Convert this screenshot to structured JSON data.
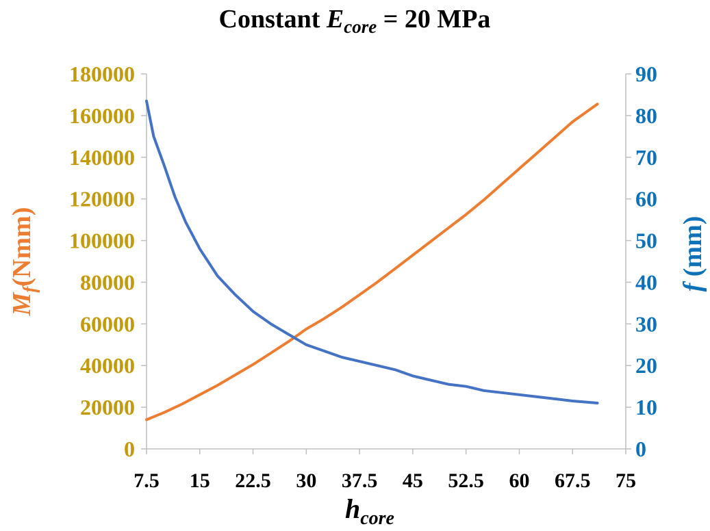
{
  "chart_data": {
    "type": "line",
    "title": {
      "prefix": "Constant ",
      "symbol": "E",
      "subscript": "core",
      "suffix": " = 20 MPa"
    },
    "xlabel": {
      "symbol": "h",
      "subscript": "core"
    },
    "ylabel_left": {
      "symbol": "M",
      "subscript": "f",
      "unit": "(Nmm)"
    },
    "ylabel_right": {
      "symbol": "f",
      "unit": " (mm)"
    },
    "xlim": [
      7.5,
      75
    ],
    "x_ticks": [
      "7.5",
      "15",
      "22.5",
      "30",
      "37.5",
      "45",
      "52.5",
      "60",
      "67.5",
      "75"
    ],
    "ylim_left": [
      0,
      180000
    ],
    "y_ticks_left": [
      "0",
      "20000",
      "40000",
      "60000",
      "80000",
      "100000",
      "120000",
      "140000",
      "160000",
      "180000"
    ],
    "ylim_right": [
      0,
      90
    ],
    "y_ticks_right": [
      "0",
      "10",
      "20",
      "30",
      "40",
      "50",
      "60",
      "70",
      "80",
      "90"
    ],
    "grid": false,
    "legend": "none",
    "colors": {
      "left_axis_text": "#c59a0a",
      "left_axis_label": "#ed7d31",
      "right_axis_text": "#0d72b8",
      "series_Mf": "#ed7d31",
      "series_f": "#4472c4",
      "axis_line": "#bfbfbf"
    },
    "series": [
      {
        "axis": "left",
        "color": "#ed7d31",
        "x": [
          7.5,
          10,
          12.5,
          15,
          17.5,
          20,
          22.5,
          25,
          27.5,
          30,
          32.5,
          35,
          37.5,
          40,
          42.5,
          45,
          47.5,
          50,
          52.5,
          55,
          57.5,
          60,
          62.5,
          65,
          67.5,
          71
        ],
        "values": [
          14000,
          17500,
          21500,
          26000,
          30500,
          35500,
          40500,
          46000,
          51500,
          57500,
          62500,
          68000,
          74000,
          80000,
          86500,
          93000,
          99500,
          106000,
          112500,
          119500,
          127000,
          134500,
          142000,
          149500,
          157000,
          165500
        ]
      },
      {
        "axis": "right",
        "color": "#4472c4",
        "x": [
          7.5,
          8.5,
          10,
          11.5,
          13,
          15,
          17.5,
          20,
          22.5,
          25,
          27.5,
          30,
          32.5,
          35,
          37.5,
          40,
          42.5,
          45,
          47.5,
          50,
          52.5,
          55,
          57.5,
          60,
          62.5,
          65,
          67.5,
          71
        ],
        "values": [
          83.5,
          75,
          68,
          60.5,
          54.5,
          48,
          41.5,
          37,
          33,
          30,
          27.5,
          25,
          23.5,
          22,
          21,
          20,
          19,
          17.5,
          16.5,
          15.5,
          15,
          14,
          13.5,
          13,
          12.5,
          12,
          11.5,
          11
        ]
      }
    ]
  }
}
